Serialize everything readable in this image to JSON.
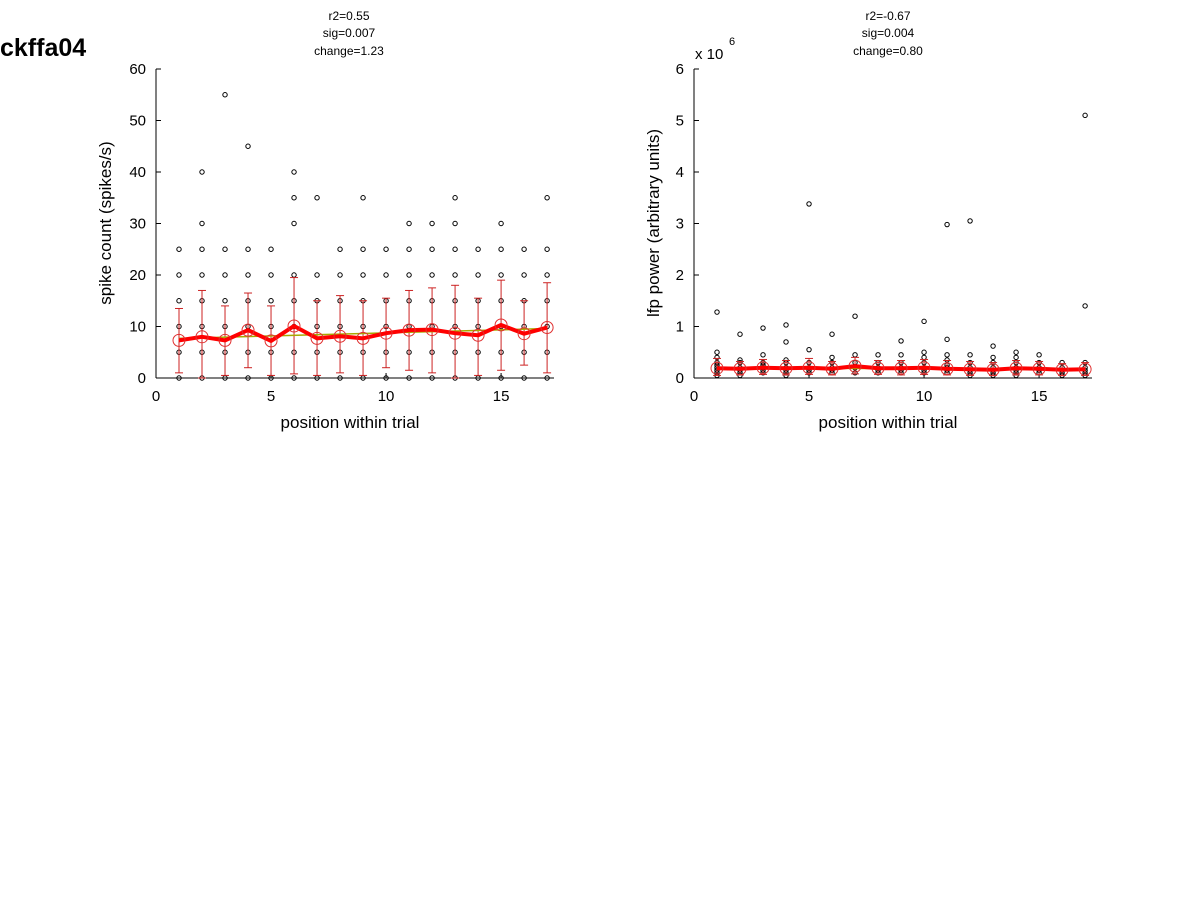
{
  "figure_title": "ckffa04",
  "colors": {
    "points": "#000000",
    "mean_line": "#ff0000",
    "mean_markers": "#e03030",
    "error_bars": "#cc2222",
    "fit_line": "#a8a800"
  },
  "chart_data": [
    {
      "type": "scatter",
      "annotations": [
        "r2=0.55",
        "sig=0.007",
        "change=1.23"
      ],
      "xlabel": "position within trial",
      "ylabel": "spike count (spikes/s)",
      "xlim": [
        0,
        17.3
      ],
      "ylim": [
        0,
        60
      ],
      "xticks": [
        0,
        5,
        10,
        15
      ],
      "xtick_labels": [
        "0",
        "5",
        "10",
        "15"
      ],
      "yticks": [
        0,
        10,
        20,
        30,
        40,
        50,
        60
      ],
      "ytick_labels": [
        "0",
        "10",
        "20",
        "30",
        "40",
        "50",
        "60"
      ],
      "y_exponent_label": "",
      "grid": false,
      "points": [
        [
          1,
          0
        ],
        [
          1,
          5
        ],
        [
          1,
          10
        ],
        [
          1,
          15
        ],
        [
          1,
          20
        ],
        [
          1,
          25
        ],
        [
          2,
          0
        ],
        [
          2,
          5
        ],
        [
          2,
          10
        ],
        [
          2,
          15
        ],
        [
          2,
          20
        ],
        [
          2,
          25
        ],
        [
          2,
          30
        ],
        [
          2,
          40
        ],
        [
          3,
          0
        ],
        [
          3,
          5
        ],
        [
          3,
          10
        ],
        [
          3,
          15
        ],
        [
          3,
          20
        ],
        [
          3,
          25
        ],
        [
          3,
          55
        ],
        [
          4,
          0
        ],
        [
          4,
          5
        ],
        [
          4,
          10
        ],
        [
          4,
          15
        ],
        [
          4,
          20
        ],
        [
          4,
          25
        ],
        [
          4,
          45
        ],
        [
          5,
          0
        ],
        [
          5,
          5
        ],
        [
          5,
          10
        ],
        [
          5,
          15
        ],
        [
          5,
          20
        ],
        [
          5,
          25
        ],
        [
          6,
          0
        ],
        [
          6,
          5
        ],
        [
          6,
          10
        ],
        [
          6,
          15
        ],
        [
          6,
          20
        ],
        [
          6,
          30
        ],
        [
          6,
          35
        ],
        [
          6,
          40
        ],
        [
          7,
          0
        ],
        [
          7,
          5
        ],
        [
          7,
          10
        ],
        [
          7,
          15
        ],
        [
          7,
          20
        ],
        [
          7,
          35
        ],
        [
          8,
          0
        ],
        [
          8,
          5
        ],
        [
          8,
          10
        ],
        [
          8,
          15
        ],
        [
          8,
          20
        ],
        [
          8,
          25
        ],
        [
          9,
          0
        ],
        [
          9,
          5
        ],
        [
          9,
          10
        ],
        [
          9,
          15
        ],
        [
          9,
          20
        ],
        [
          9,
          25
        ],
        [
          9,
          35
        ],
        [
          10,
          0
        ],
        [
          10,
          5
        ],
        [
          10,
          10
        ],
        [
          10,
          15
        ],
        [
          10,
          20
        ],
        [
          10,
          25
        ],
        [
          11,
          0
        ],
        [
          11,
          5
        ],
        [
          11,
          10
        ],
        [
          11,
          15
        ],
        [
          11,
          20
        ],
        [
          11,
          25
        ],
        [
          11,
          30
        ],
        [
          12,
          0
        ],
        [
          12,
          5
        ],
        [
          12,
          10
        ],
        [
          12,
          15
        ],
        [
          12,
          20
        ],
        [
          12,
          25
        ],
        [
          12,
          30
        ],
        [
          13,
          0
        ],
        [
          13,
          5
        ],
        [
          13,
          10
        ],
        [
          13,
          15
        ],
        [
          13,
          20
        ],
        [
          13,
          25
        ],
        [
          13,
          30
        ],
        [
          13,
          35
        ],
        [
          14,
          0
        ],
        [
          14,
          5
        ],
        [
          14,
          10
        ],
        [
          14,
          15
        ],
        [
          14,
          20
        ],
        [
          14,
          25
        ],
        [
          15,
          0
        ],
        [
          15,
          5
        ],
        [
          15,
          10
        ],
        [
          15,
          15
        ],
        [
          15,
          20
        ],
        [
          15,
          25
        ],
        [
          15,
          30
        ],
        [
          16,
          0
        ],
        [
          16,
          5
        ],
        [
          16,
          10
        ],
        [
          16,
          15
        ],
        [
          16,
          20
        ],
        [
          16,
          25
        ],
        [
          17,
          0
        ],
        [
          17,
          5
        ],
        [
          17,
          10
        ],
        [
          17,
          15
        ],
        [
          17,
          20
        ],
        [
          17,
          25
        ],
        [
          17,
          35
        ]
      ],
      "mean_x": [
        1,
        2,
        3,
        4,
        5,
        6,
        7,
        8,
        9,
        10,
        11,
        12,
        13,
        14,
        15,
        16,
        17
      ],
      "mean": [
        7.3,
        8.0,
        7.3,
        9.3,
        7.2,
        10.1,
        7.7,
        8.1,
        7.7,
        8.7,
        9.3,
        9.4,
        8.7,
        8.3,
        10.3,
        8.6,
        9.8
      ],
      "error_low": [
        1.0,
        0,
        0.5,
        2.0,
        0.5,
        0.8,
        0.5,
        1.0,
        0.5,
        2.0,
        1.5,
        1.0,
        0,
        0.5,
        1.5,
        2.5,
        1.0
      ],
      "error_high": [
        13.5,
        17.0,
        14.0,
        16.5,
        14.0,
        19.5,
        15.0,
        16.0,
        15.0,
        15.5,
        17.0,
        17.5,
        18.0,
        15.5,
        19.0,
        15.0,
        18.5
      ],
      "fit_line": [
        [
          1,
          7.7
        ],
        [
          17,
          9.6
        ]
      ]
    },
    {
      "type": "scatter",
      "annotations": [
        "r2=-0.67",
        "sig=0.004",
        "change=0.80"
      ],
      "xlabel": "position within trial",
      "ylabel": "lfp power (arbitrary units)",
      "xlim": [
        0,
        17.3
      ],
      "ylim": [
        0,
        6
      ],
      "xticks": [
        0,
        5,
        10,
        15
      ],
      "xtick_labels": [
        "0",
        "5",
        "10",
        "15"
      ],
      "yticks": [
        0,
        1,
        2,
        3,
        4,
        5,
        6
      ],
      "ytick_labels": [
        "0",
        "1",
        "2",
        "3",
        "4",
        "5",
        "6"
      ],
      "y_exponent_label": "x 10",
      "y_exponent": "6",
      "grid": false,
      "points": [
        [
          1,
          0.05
        ],
        [
          1,
          0.1
        ],
        [
          1,
          0.15
        ],
        [
          1,
          0.2
        ],
        [
          1,
          0.25
        ],
        [
          1,
          0.3
        ],
        [
          1,
          0.4
        ],
        [
          1,
          0.5
        ],
        [
          1,
          1.28
        ],
        [
          2,
          0.05
        ],
        [
          2,
          0.1
        ],
        [
          2,
          0.15
        ],
        [
          2,
          0.2
        ],
        [
          2,
          0.3
        ],
        [
          2,
          0.35
        ],
        [
          2,
          0.85
        ],
        [
          3,
          0.1
        ],
        [
          3,
          0.15
        ],
        [
          3,
          0.2
        ],
        [
          3,
          0.25
        ],
        [
          3,
          0.3
        ],
        [
          3,
          0.45
        ],
        [
          3,
          0.97
        ],
        [
          4,
          0.05
        ],
        [
          4,
          0.1
        ],
        [
          4,
          0.15
        ],
        [
          4,
          0.2
        ],
        [
          4,
          0.3
        ],
        [
          4,
          0.35
        ],
        [
          4,
          0.7
        ],
        [
          4,
          1.03
        ],
        [
          5,
          0.1
        ],
        [
          5,
          0.15
        ],
        [
          5,
          0.2
        ],
        [
          5,
          0.3
        ],
        [
          5,
          0.55
        ],
        [
          5,
          3.38
        ],
        [
          6,
          0.1
        ],
        [
          6,
          0.15
        ],
        [
          6,
          0.2
        ],
        [
          6,
          0.3
        ],
        [
          6,
          0.4
        ],
        [
          6,
          0.85
        ],
        [
          7,
          0.1
        ],
        [
          7,
          0.2
        ],
        [
          7,
          0.3
        ],
        [
          7,
          0.45
        ],
        [
          7,
          1.2
        ],
        [
          8,
          0.1
        ],
        [
          8,
          0.15
        ],
        [
          8,
          0.2
        ],
        [
          8,
          0.3
        ],
        [
          8,
          0.45
        ],
        [
          9,
          0.1
        ],
        [
          9,
          0.15
        ],
        [
          9,
          0.2
        ],
        [
          9,
          0.3
        ],
        [
          9,
          0.45
        ],
        [
          9,
          0.72
        ],
        [
          10,
          0.1
        ],
        [
          10,
          0.15
        ],
        [
          10,
          0.2
        ],
        [
          10,
          0.3
        ],
        [
          10,
          0.4
        ],
        [
          10,
          0.5
        ],
        [
          10,
          1.1
        ],
        [
          11,
          0.1
        ],
        [
          11,
          0.15
        ],
        [
          11,
          0.2
        ],
        [
          11,
          0.25
        ],
        [
          11,
          0.35
        ],
        [
          11,
          0.45
        ],
        [
          11,
          0.75
        ],
        [
          11,
          2.98
        ],
        [
          12,
          0.05
        ],
        [
          12,
          0.1
        ],
        [
          12,
          0.15
        ],
        [
          12,
          0.2
        ],
        [
          12,
          0.3
        ],
        [
          12,
          0.45
        ],
        [
          12,
          3.05
        ],
        [
          13,
          0.05
        ],
        [
          13,
          0.1
        ],
        [
          13,
          0.15
        ],
        [
          13,
          0.2
        ],
        [
          13,
          0.3
        ],
        [
          13,
          0.4
        ],
        [
          13,
          0.62
        ],
        [
          14,
          0.05
        ],
        [
          14,
          0.1
        ],
        [
          14,
          0.15
        ],
        [
          14,
          0.2
        ],
        [
          14,
          0.3
        ],
        [
          14,
          0.4
        ],
        [
          14,
          0.5
        ],
        [
          15,
          0.1
        ],
        [
          15,
          0.15
        ],
        [
          15,
          0.2
        ],
        [
          15,
          0.3
        ],
        [
          15,
          0.45
        ],
        [
          16,
          0.05
        ],
        [
          16,
          0.1
        ],
        [
          16,
          0.15
        ],
        [
          16,
          0.2
        ],
        [
          16,
          0.3
        ],
        [
          17,
          0.05
        ],
        [
          17,
          0.1
        ],
        [
          17,
          0.15
        ],
        [
          17,
          0.2
        ],
        [
          17,
          0.3
        ],
        [
          17,
          1.4
        ],
        [
          17,
          5.1
        ]
      ],
      "mean_x": [
        1,
        2,
        3,
        4,
        5,
        6,
        7,
        8,
        9,
        10,
        11,
        12,
        13,
        14,
        15,
        16,
        17
      ],
      "mean": [
        0.19,
        0.18,
        0.2,
        0.19,
        0.2,
        0.18,
        0.23,
        0.19,
        0.19,
        0.2,
        0.18,
        0.17,
        0.16,
        0.19,
        0.18,
        0.16,
        0.17
      ],
      "error_low": [
        0.05,
        0.06,
        0.07,
        0.06,
        0.07,
        0.06,
        0.08,
        0.07,
        0.06,
        0.07,
        0.06,
        0.05,
        0.05,
        0.06,
        0.06,
        0.05,
        0.05
      ],
      "error_high": [
        0.38,
        0.32,
        0.36,
        0.34,
        0.38,
        0.32,
        0.4,
        0.34,
        0.34,
        0.36,
        0.34,
        0.32,
        0.3,
        0.34,
        0.32,
        0.28,
        0.3
      ],
      "fit_line": [
        [
          1,
          0.2
        ],
        [
          17,
          0.16
        ]
      ]
    }
  ]
}
